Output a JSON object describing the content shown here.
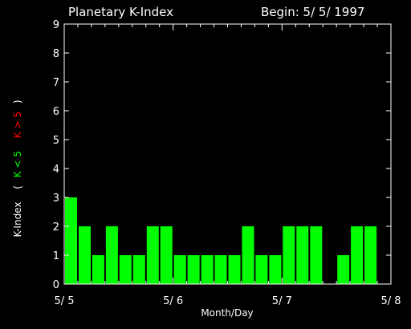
{
  "chart_data": {
    "type": "bar",
    "title": "Planetary K-Index",
    "begin_label": "Begin: 5/ 5/ 1997",
    "xlabel": "Month/Day",
    "ylabel": {
      "main": "K-Index",
      "open_paren": "(",
      "low": "K < 5",
      "high": "K > 5",
      "close_paren": ")"
    },
    "ylim": [
      0,
      9
    ],
    "y_ticks": [
      "0",
      "1",
      "2",
      "3",
      "4",
      "5",
      "6",
      "7",
      "8",
      "9"
    ],
    "x_ticks": [
      "5/ 5",
      "5/ 6",
      "5/ 7",
      "5/ 8"
    ],
    "bars_per_day": 8,
    "days": 3,
    "values": [
      3,
      2,
      1,
      2,
      1,
      1,
      2,
      2,
      1,
      1,
      1,
      1,
      1,
      2,
      1,
      1,
      2,
      2,
      2,
      0,
      1,
      2,
      2,
      0
    ],
    "colors": {
      "background": "#000000",
      "axes": "#ffffff",
      "bar_low": "#00ff00",
      "bar_high": "#ff0000",
      "label_low": "#00ff00",
      "label_high": "#ff0000"
    }
  }
}
